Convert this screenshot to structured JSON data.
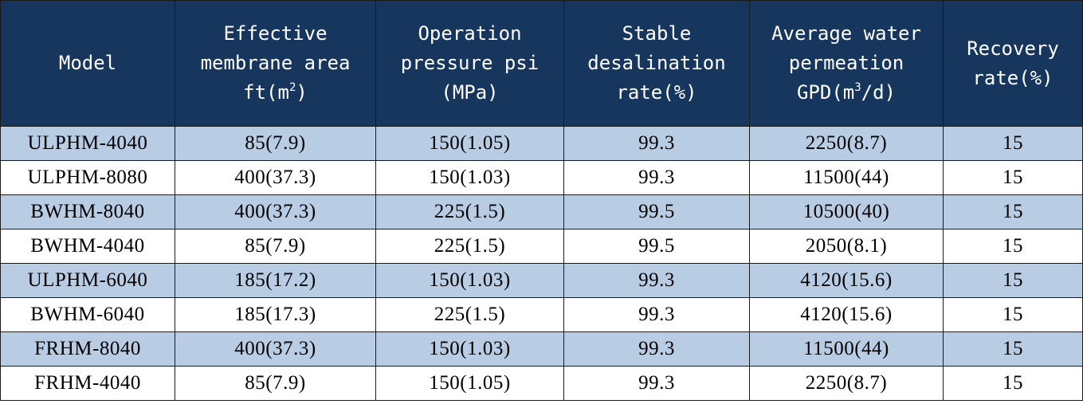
{
  "header": {
    "model": "Model",
    "area": {
      "line1": "Effective",
      "line2": "membrane area",
      "line3_pre": "ft(m",
      "line3_sup": "2",
      "line3_post": ")"
    },
    "pressure": {
      "line1": "Operation",
      "line2": "pressure psi",
      "line3": "(MPa)"
    },
    "desal": {
      "line1": "Stable",
      "line2": "desalination",
      "line3": "rate(%)"
    },
    "permeation": {
      "line1": "Average water",
      "line2": "permeation",
      "line3_pre": "GPD(m",
      "line3_sup": "3",
      "line3_post": "/d)"
    },
    "recovery": {
      "line1": "Recovery",
      "line2": "rate(%)"
    }
  },
  "rows": [
    [
      "ULPHM-4040",
      "85(7.9)",
      "150(1.05)",
      "99.3",
      "2250(8.7)",
      "15"
    ],
    [
      "ULPHM-8080",
      "400(37.3)",
      "150(1.03)",
      "99.3",
      "11500(44)",
      "15"
    ],
    [
      "BWHM-8040",
      "400(37.3)",
      "225(1.5)",
      "99.5",
      "10500(40)",
      "15"
    ],
    [
      "BWHM-4040",
      "85(7.9)",
      "225(1.5)",
      "99.5",
      "2050(8.1)",
      "15"
    ],
    [
      "ULPHM-6040",
      "185(17.2)",
      "150(1.03)",
      "99.3",
      "4120(15.6)",
      "15"
    ],
    [
      "BWHM-6040",
      "185(17.3)",
      "225(1.5)",
      "99.3",
      "4120(15.6)",
      "15"
    ],
    [
      "FRHM-8040",
      "400(37.3)",
      "150(1.03)",
      "99.3",
      "11500(44)",
      "15"
    ],
    [
      "FRHM-4040",
      "85(7.9)",
      "150(1.05)",
      "99.3",
      "2250(8.7)",
      "15"
    ]
  ],
  "colors": {
    "header_bg": "#17365d",
    "stripe": "#b8cce4",
    "border": "#1a1a1a"
  }
}
